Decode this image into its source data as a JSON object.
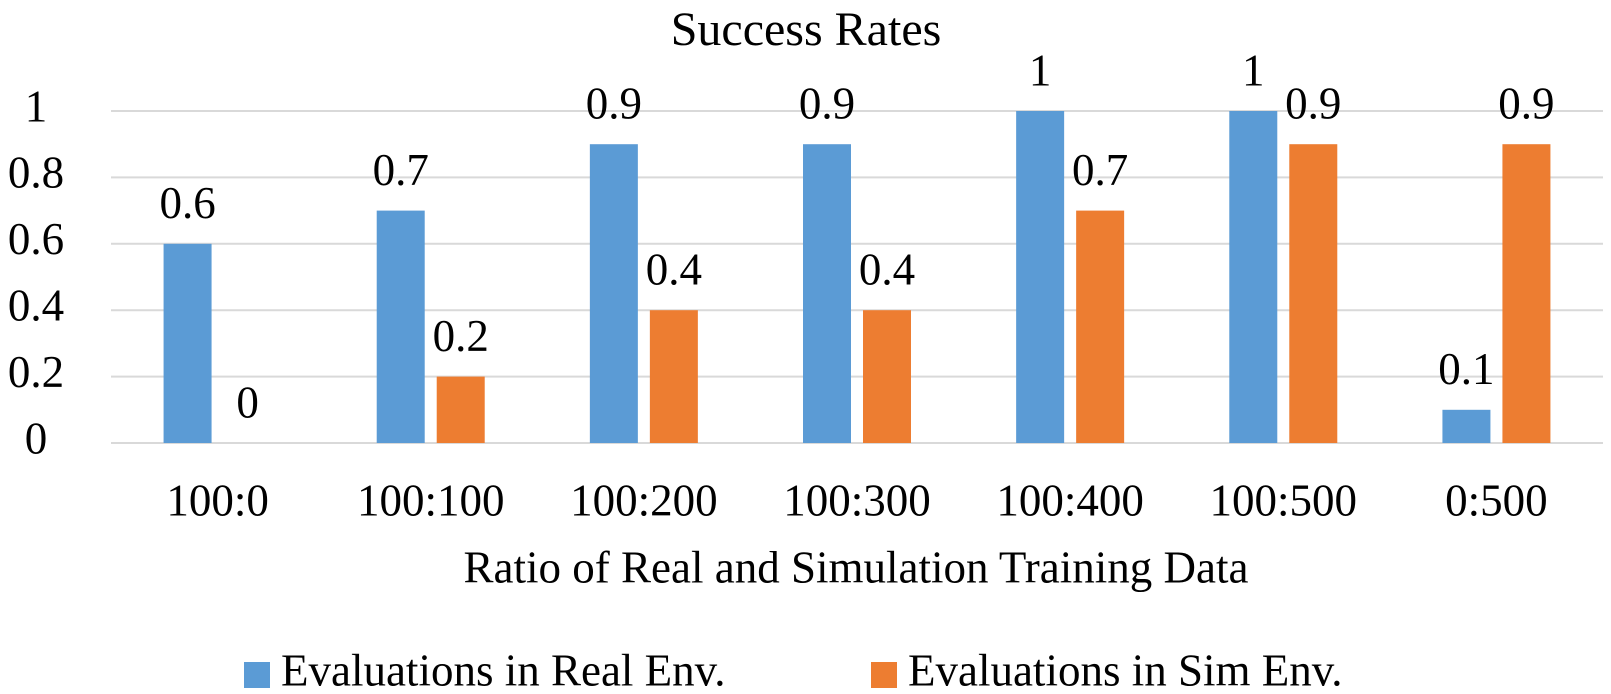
{
  "chart_data": {
    "type": "bar",
    "title": "Success Rates",
    "x_label": "Ratio of Real and Simulation Training Data",
    "categories": [
      "100:0",
      "100:100",
      "100:200",
      "100:300",
      "100:400",
      "100:500",
      "0:500"
    ],
    "series": [
      {
        "name": "Evaluations in Real Env.",
        "color": "#5b9bd5",
        "values": [
          0.6,
          0.7,
          0.9,
          0.9,
          1,
          1,
          0.1
        ]
      },
      {
        "name": "Evaluations in Sim Env.",
        "color": "#ed7d31",
        "values": [
          0,
          0.2,
          0.4,
          0.4,
          0.7,
          0.9,
          0.9
        ]
      }
    ],
    "ylim": [
      0,
      1
    ],
    "yticks": [
      0,
      0.2,
      0.4,
      0.6,
      0.8,
      1
    ],
    "grid": true,
    "legend": "bottom"
  }
}
